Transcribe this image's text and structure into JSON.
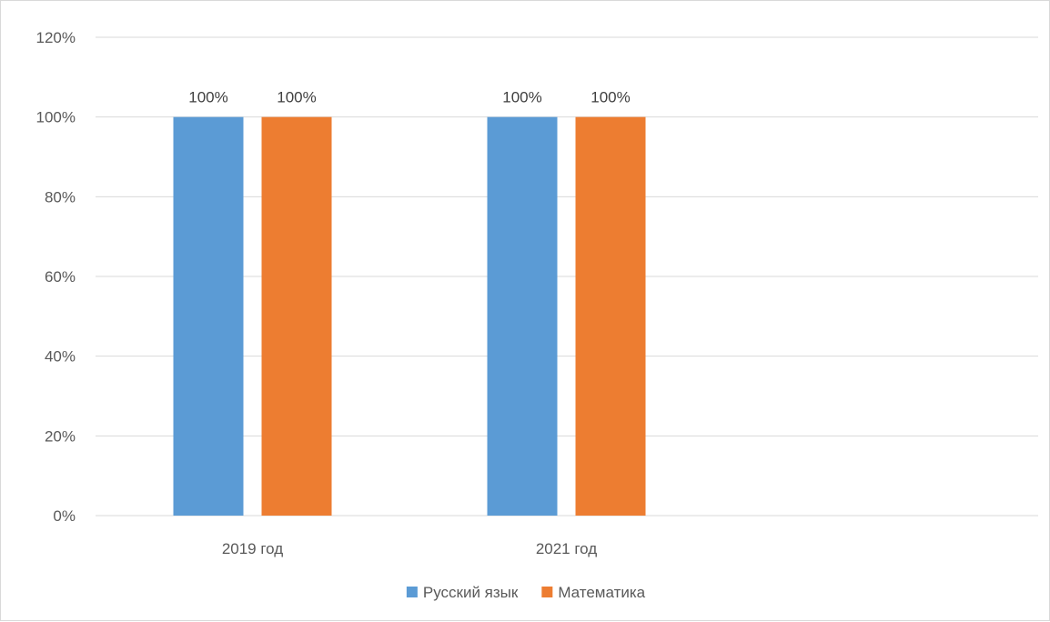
{
  "chart_data": {
    "type": "bar",
    "categories": [
      "2019 год",
      "2021 год"
    ],
    "series": [
      {
        "name": "Русский язык",
        "values": [
          1.0,
          1.0
        ],
        "color": "#5b9bd5"
      },
      {
        "name": "Математика",
        "values": [
          1.0,
          1.0
        ],
        "color": "#ed7d31"
      }
    ],
    "data_labels": [
      [
        "100%",
        "100%"
      ],
      [
        "100%",
        "100%"
      ]
    ],
    "ylim": [
      0,
      1.2
    ],
    "yticks": [
      0,
      0.2,
      0.4,
      0.6,
      0.8,
      1.0,
      1.2
    ],
    "ytick_labels": [
      "0%",
      "20%",
      "40%",
      "60%",
      "80%",
      "100%",
      "120%"
    ],
    "category_slots": 3,
    "grid": true,
    "legend_position": "bottom",
    "title": "",
    "xlabel": "",
    "ylabel": "",
    "colors": {
      "gridline": "#d9d9d9",
      "axis": "#d9d9d9"
    }
  }
}
